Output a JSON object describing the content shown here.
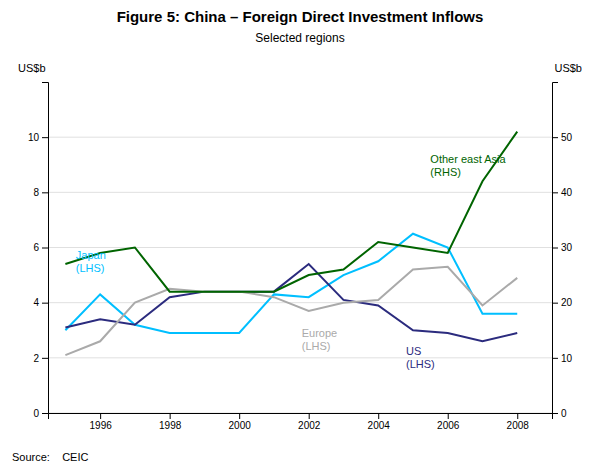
{
  "chart_data": {
    "type": "line",
    "title": "Figure 5: China – Foreign Direct Investment Inflows",
    "subtitle": "Selected regions",
    "source": "Source:    CEIC",
    "x": [
      1995,
      1996,
      1997,
      1998,
      1999,
      2000,
      2001,
      2002,
      2003,
      2004,
      2005,
      2006,
      2007,
      2008
    ],
    "series": [
      {
        "color": "#00bfff",
        "values": [
          3.0,
          4.3,
          3.2,
          2.9,
          2.9,
          2.9,
          4.3,
          4.2,
          5.0,
          5.5,
          6.5,
          6.0,
          3.6,
          3.6
        ]
      },
      {
        "color": "#2b2b7e",
        "values": [
          3.1,
          3.4,
          3.2,
          4.2,
          4.4,
          4.4,
          4.4,
          5.4,
          4.1,
          3.9,
          3.0,
          2.9,
          2.6,
          2.9
        ]
      },
      {
        "color": "#aaaaaa",
        "values": [
          2.1,
          2.6,
          4.0,
          4.5,
          4.4,
          4.4,
          4.2,
          3.7,
          4.0,
          4.1,
          5.2,
          5.3,
          3.9,
          4.9
        ]
      },
      {
        "color": "#006400",
        "axis": "y2",
        "values": [
          27,
          29,
          30,
          22,
          22,
          22,
          22,
          25,
          26,
          31,
          30,
          29,
          42,
          51
        ]
      }
    ],
    "xlim": [
      1994.5,
      2009.0
    ],
    "xticks": [
      1996,
      1998,
      2000,
      2002,
      2004,
      2006,
      2008
    ],
    "ylim": [
      0,
      12
    ],
    "yticks": [
      0,
      2,
      4,
      6,
      8,
      10
    ],
    "y2lim": [
      0,
      60
    ],
    "y2ticks": [
      0,
      10,
      20,
      30,
      40,
      50
    ],
    "ylabel": "US$b",
    "y2label": "US$b",
    "grid": true,
    "annotations": [
      {
        "text": "Japan\n(LHS)",
        "x": 1995.3,
        "y": 5.0,
        "color": "#00bfff"
      },
      {
        "text": "US\n(LHS)",
        "x": 2004.8,
        "y": 2.5,
        "color": "#2b2b7e"
      },
      {
        "text": "Europe\n(LHS)",
        "x": 2001.8,
        "y": 3.15,
        "color": "#aaaaaa"
      },
      {
        "text": "Other east Asia\n(RHS)",
        "x": 2005.5,
        "y": 8.5,
        "color": "#006400"
      }
    ]
  }
}
